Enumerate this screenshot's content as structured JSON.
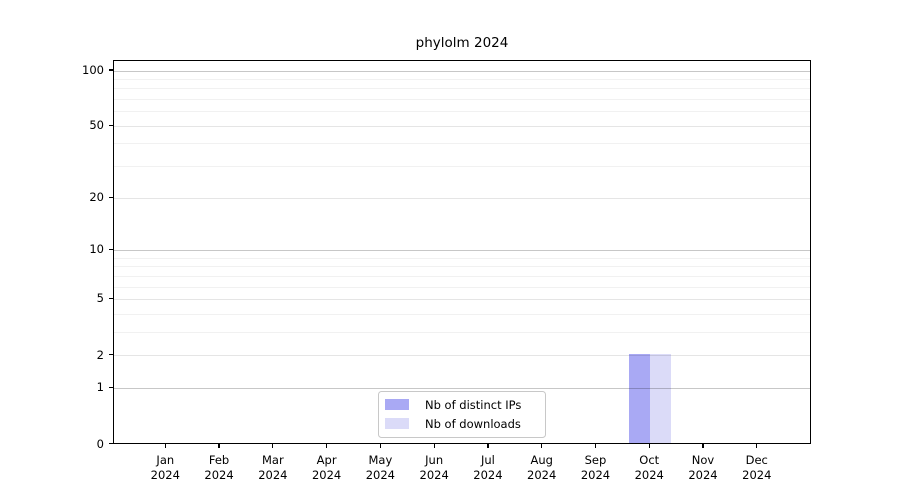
{
  "title": "phylolm 2024",
  "chart_data": {
    "type": "bar",
    "title": "phylolm 2024",
    "x_labels": [
      {
        "month": "Jan",
        "year": "2024"
      },
      {
        "month": "Feb",
        "year": "2024"
      },
      {
        "month": "Mar",
        "year": "2024"
      },
      {
        "month": "Apr",
        "year": "2024"
      },
      {
        "month": "May",
        "year": "2024"
      },
      {
        "month": "Jun",
        "year": "2024"
      },
      {
        "month": "Jul",
        "year": "2024"
      },
      {
        "month": "Aug",
        "year": "2024"
      },
      {
        "month": "Sep",
        "year": "2024"
      },
      {
        "month": "Oct",
        "year": "2024"
      },
      {
        "month": "Nov",
        "year": "2024"
      },
      {
        "month": "Dec",
        "year": "2024"
      }
    ],
    "series": [
      {
        "name": "Nb of distinct IPs",
        "color": "#a9a9f4",
        "values": [
          0,
          0,
          0,
          0,
          0,
          0,
          0,
          0,
          0,
          2,
          0,
          0
        ]
      },
      {
        "name": "Nb of downloads",
        "color": "#dbdbf8",
        "values": [
          0,
          0,
          0,
          0,
          0,
          0,
          0,
          0,
          0,
          2,
          0,
          0
        ]
      }
    ],
    "y_scale": "log10(1+v)",
    "y_ticks": [
      100,
      50,
      20,
      10,
      5,
      2,
      1,
      0
    ],
    "y_minor_gridlines": [
      3,
      4,
      6,
      7,
      8,
      9,
      30,
      40,
      60,
      70,
      80,
      90
    ],
    "ylim": [
      0,
      114
    ],
    "grid": true,
    "legend_position": "lower center",
    "axis_color": "#000000",
    "background_color": "#ffffff"
  }
}
